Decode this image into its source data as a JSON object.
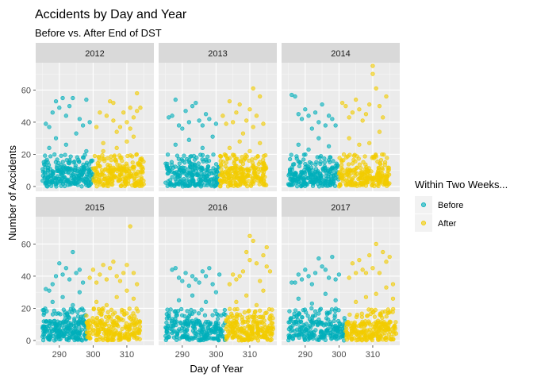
{
  "chart_data": {
    "type": "scatter",
    "title": "Accidents by Day and Year",
    "subtitle": "Before vs. After End of DST",
    "xlabel": "Day of Year",
    "ylabel": "Number of Accidents",
    "xlim": [
      283,
      318
    ],
    "ylim": [
      -3,
      77
    ],
    "x_ticks": [
      290,
      300,
      310
    ],
    "y_ticks": [
      0,
      20,
      40,
      60
    ],
    "grid": true,
    "legend": {
      "title": "Within Two Weeks...",
      "position": "right",
      "entries": [
        {
          "key": "before",
          "label": "Before",
          "color": "#00AFBB"
        },
        {
          "key": "after",
          "label": "After",
          "color": "#F2CC00"
        }
      ]
    },
    "panels": [
      {
        "year": "2012",
        "before_range": [
          285,
          300
        ],
        "after_range": [
          300,
          315
        ],
        "before_points": [
          [
            286,
            39
          ],
          [
            287,
            37
          ],
          [
            288,
            46
          ],
          [
            289,
            53
          ],
          [
            290,
            49
          ],
          [
            291,
            55
          ],
          [
            292,
            44
          ],
          [
            293,
            50
          ],
          [
            294,
            55
          ],
          [
            296,
            42
          ],
          [
            297,
            38
          ],
          [
            298,
            54
          ],
          [
            299,
            40
          ],
          [
            287,
            24
          ],
          [
            289,
            30
          ],
          [
            292,
            26
          ],
          [
            295,
            33
          ],
          [
            298,
            22
          ]
        ],
        "after_points": [
          [
            301,
            37
          ],
          [
            302,
            46
          ],
          [
            303,
            27
          ],
          [
            304,
            44
          ],
          [
            305,
            53
          ],
          [
            306,
            41
          ],
          [
            306,
            52
          ],
          [
            307,
            34
          ],
          [
            308,
            37
          ],
          [
            309,
            46
          ],
          [
            310,
            40
          ],
          [
            311,
            36
          ],
          [
            311,
            49
          ],
          [
            312,
            43
          ],
          [
            313,
            58
          ],
          [
            314,
            49
          ],
          [
            313,
            47
          ],
          [
            303,
            22
          ],
          [
            307,
            24
          ],
          [
            310,
            28
          ],
          [
            312,
            31
          ]
        ]
      },
      {
        "year": "2013",
        "before_range": [
          285,
          301
        ],
        "after_range": [
          301,
          315
        ],
        "before_points": [
          [
            286,
            43
          ],
          [
            287,
            44
          ],
          [
            288,
            54
          ],
          [
            289,
            38
          ],
          [
            290,
            36
          ],
          [
            291,
            47
          ],
          [
            292,
            40
          ],
          [
            293,
            50
          ],
          [
            294,
            52
          ],
          [
            295,
            41
          ],
          [
            296,
            38
          ],
          [
            297,
            45
          ],
          [
            298,
            42
          ],
          [
            300,
            39
          ],
          [
            288,
            26
          ],
          [
            292,
            29
          ],
          [
            296,
            24
          ],
          [
            299,
            31
          ]
        ],
        "after_points": [
          [
            302,
            44
          ],
          [
            303,
            39
          ],
          [
            304,
            53
          ],
          [
            305,
            40
          ],
          [
            306,
            46
          ],
          [
            307,
            51
          ],
          [
            308,
            33
          ],
          [
            309,
            41
          ],
          [
            310,
            48
          ],
          [
            311,
            37
          ],
          [
            311,
            61
          ],
          [
            312,
            44
          ],
          [
            313,
            56
          ],
          [
            314,
            39
          ],
          [
            304,
            24
          ],
          [
            307,
            28
          ],
          [
            310,
            22
          ],
          [
            313,
            27
          ]
        ]
      },
      {
        "year": "2014",
        "before_range": [
          285,
          300
        ],
        "after_range": [
          300,
          315
        ],
        "before_points": [
          [
            286,
            57
          ],
          [
            287,
            56
          ],
          [
            288,
            45
          ],
          [
            289,
            42
          ],
          [
            290,
            48
          ],
          [
            291,
            44
          ],
          [
            292,
            36
          ],
          [
            293,
            46
          ],
          [
            294,
            40
          ],
          [
            295,
            51
          ],
          [
            296,
            38
          ],
          [
            297,
            44
          ],
          [
            298,
            42
          ],
          [
            299,
            38
          ],
          [
            288,
            26
          ],
          [
            291,
            23
          ],
          [
            294,
            30
          ],
          [
            297,
            25
          ]
        ],
        "after_points": [
          [
            301,
            52
          ],
          [
            302,
            50
          ],
          [
            303,
            43
          ],
          [
            304,
            46
          ],
          [
            305,
            54
          ],
          [
            306,
            48
          ],
          [
            307,
            41
          ],
          [
            308,
            45
          ],
          [
            309,
            51
          ],
          [
            310,
            75
          ],
          [
            310,
            70
          ],
          [
            311,
            61
          ],
          [
            312,
            50
          ],
          [
            313,
            43
          ],
          [
            314,
            56
          ],
          [
            303,
            30
          ],
          [
            306,
            26
          ],
          [
            309,
            27
          ],
          [
            312,
            34
          ]
        ]
      },
      {
        "year": "2015",
        "before_range": [
          285,
          298
        ],
        "after_range": [
          298,
          314
        ],
        "before_points": [
          [
            286,
            32
          ],
          [
            287,
            31
          ],
          [
            288,
            35
          ],
          [
            289,
            40
          ],
          [
            290,
            48
          ],
          [
            291,
            41
          ],
          [
            292,
            45
          ],
          [
            293,
            38
          ],
          [
            294,
            55
          ],
          [
            295,
            42
          ],
          [
            296,
            44
          ],
          [
            297,
            36
          ],
          [
            288,
            24
          ],
          [
            291,
            27
          ],
          [
            294,
            22
          ],
          [
            296,
            30
          ]
        ],
        "after_points": [
          [
            299,
            39
          ],
          [
            300,
            44
          ],
          [
            301,
            36
          ],
          [
            302,
            41
          ],
          [
            303,
            47
          ],
          [
            304,
            38
          ],
          [
            305,
            45
          ],
          [
            306,
            49
          ],
          [
            307,
            40
          ],
          [
            308,
            37
          ],
          [
            309,
            42
          ],
          [
            310,
            47
          ],
          [
            311,
            71
          ],
          [
            312,
            42
          ],
          [
            313,
            35
          ],
          [
            301,
            24
          ],
          [
            304,
            22
          ],
          [
            307,
            27
          ],
          [
            310,
            31
          ],
          [
            312,
            26
          ]
        ]
      },
      {
        "year": "2016",
        "before_range": [
          285,
          303
        ],
        "after_range": [
          303,
          317
        ],
        "before_points": [
          [
            287,
            44
          ],
          [
            288,
            45
          ],
          [
            289,
            39
          ],
          [
            290,
            37
          ],
          [
            291,
            42
          ],
          [
            292,
            34
          ],
          [
            293,
            40
          ],
          [
            294,
            38
          ],
          [
            295,
            36
          ],
          [
            296,
            43
          ],
          [
            297,
            40
          ],
          [
            298,
            45
          ],
          [
            299,
            35
          ],
          [
            301,
            41
          ],
          [
            289,
            25
          ],
          [
            293,
            28
          ],
          [
            297,
            24
          ],
          [
            300,
            30
          ]
        ],
        "after_points": [
          [
            304,
            35
          ],
          [
            305,
            41
          ],
          [
            306,
            38
          ],
          [
            307,
            40
          ],
          [
            308,
            43
          ],
          [
            309,
            55
          ],
          [
            310,
            50
          ],
          [
            310,
            65
          ],
          [
            311,
            62
          ],
          [
            312,
            48
          ],
          [
            313,
            37
          ],
          [
            314,
            53
          ],
          [
            315,
            46
          ],
          [
            316,
            43
          ],
          [
            306,
            24
          ],
          [
            309,
            28
          ],
          [
            312,
            22
          ],
          [
            314,
            31
          ],
          [
            315,
            58
          ]
        ]
      },
      {
        "year": "2017",
        "before_range": [
          285,
          302
        ],
        "after_range": [
          302,
          317
        ],
        "before_points": [
          [
            286,
            36
          ],
          [
            287,
            36
          ],
          [
            288,
            41
          ],
          [
            289,
            38
          ],
          [
            290,
            44
          ],
          [
            291,
            40
          ],
          [
            292,
            35
          ],
          [
            293,
            42
          ],
          [
            294,
            51
          ],
          [
            295,
            46
          ],
          [
            296,
            44
          ],
          [
            297,
            39
          ],
          [
            298,
            52
          ],
          [
            299,
            38
          ],
          [
            300,
            41
          ],
          [
            288,
            26
          ],
          [
            292,
            23
          ],
          [
            296,
            29
          ],
          [
            299,
            25
          ]
        ],
        "after_points": [
          [
            303,
            39
          ],
          [
            304,
            48
          ],
          [
            305,
            42
          ],
          [
            306,
            50
          ],
          [
            307,
            44
          ],
          [
            308,
            42
          ],
          [
            309,
            53
          ],
          [
            310,
            45
          ],
          [
            311,
            60
          ],
          [
            312,
            42
          ],
          [
            313,
            55
          ],
          [
            314,
            49
          ],
          [
            315,
            52
          ],
          [
            316,
            35
          ],
          [
            305,
            24
          ],
          [
            308,
            27
          ],
          [
            311,
            29
          ],
          [
            314,
            33
          ],
          [
            316,
            26
          ]
        ]
      }
    ]
  }
}
